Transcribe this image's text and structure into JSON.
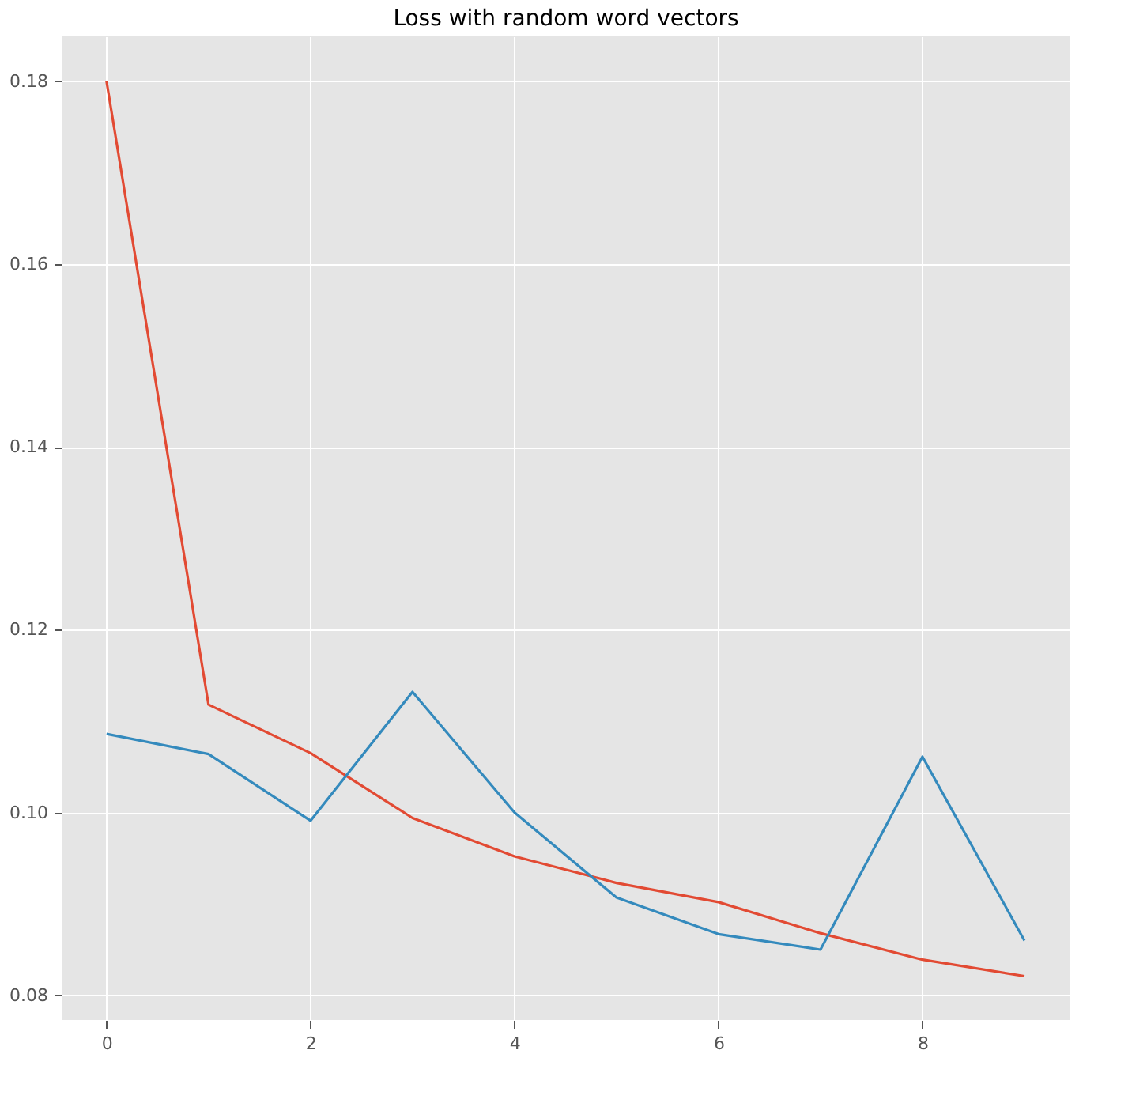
{
  "chart_data": {
    "type": "line",
    "title": "Loss with random word vectors",
    "x": [
      0,
      1,
      2,
      3,
      4,
      5,
      6,
      7,
      8,
      9
    ],
    "series": [
      {
        "color": "#e24a33",
        "values": [
          0.18,
          0.1118,
          0.1065,
          0.0994,
          0.0952,
          0.0923,
          0.0902,
          0.0868,
          0.0839,
          0.0821
        ]
      },
      {
        "color": "#348abd",
        "values": [
          0.1086,
          0.1064,
          0.0991,
          0.1132,
          0.1,
          0.0907,
          0.0867,
          0.085,
          0.1061,
          0.086
        ]
      }
    ],
    "xlim": [
      -0.44,
      9.45
    ],
    "xticks": [
      0,
      2,
      4,
      6,
      8
    ],
    "ylim": [
      0.0773,
      0.1849
    ],
    "yticks": [
      {
        "value": 0.08,
        "label": "0.08"
      },
      {
        "value": 0.1,
        "label": "0.10"
      },
      {
        "value": 0.12,
        "label": "0.12"
      },
      {
        "value": 0.14,
        "label": "0.14"
      },
      {
        "value": 0.16,
        "label": "0.16"
      },
      {
        "value": 0.18,
        "label": "0.18"
      }
    ],
    "grid": true,
    "line_style": "solid",
    "marker": "none",
    "legend": false
  }
}
